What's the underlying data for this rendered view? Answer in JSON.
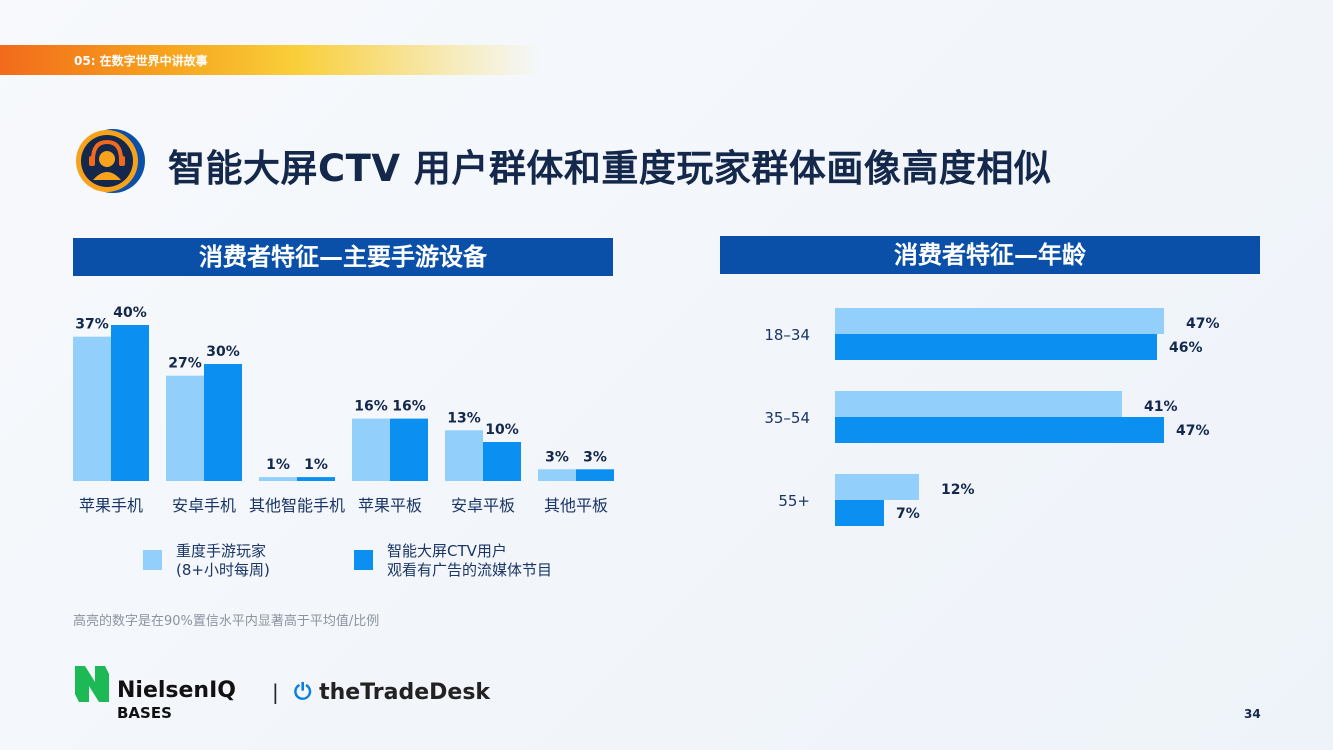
{
  "section_tag": "05: 在数字世界中讲故事",
  "page_title": "智能大屏CTV 用户群体和重度玩家群体画像高度相似",
  "footnote": "高亮的数字是在90%置信水平内显著高于平均值/比例",
  "page_number": "34",
  "logos": {
    "nielsen_line1": "NielsenIQ",
    "nielsen_line2": "BASES",
    "separator": "|",
    "tradedesk": "theTradeDesk"
  },
  "colors": {
    "light_series": "#92d0fb",
    "dark_series": "#0b8ff0",
    "header_bg": "#0a4fa8",
    "title_text": "#14284b",
    "accent_orange": "#f26a1b"
  },
  "legend": {
    "light_line1": "重度手游玩家",
    "light_line2": "(8+小时每周)",
    "dark_line1": "智能大屏CTV用户",
    "dark_line2": "观看有广告的流媒体节目"
  },
  "chart_data": [
    {
      "type": "bar",
      "title": "消费者特征—主要手游设备",
      "categories": [
        "苹果手机",
        "安卓手机",
        "其他智能手机",
        "苹果平板",
        "安卓平板",
        "其他平板"
      ],
      "series": [
        {
          "name": "重度手游玩家 (8+小时每周)",
          "values": [
            37,
            27,
            1,
            16,
            13,
            3
          ]
        },
        {
          "name": "智能大屏CTV用户 观看有广告的流媒体节目",
          "values": [
            40,
            30,
            1,
            16,
            10,
            3
          ]
        }
      ],
      "value_labels": [
        [
          "37%",
          "27%",
          "1%",
          "16%",
          "13%",
          "3%"
        ],
        [
          "40%",
          "30%",
          "1%",
          "16%",
          "10%",
          "3%"
        ]
      ],
      "unit": "%",
      "grid": false
    },
    {
      "type": "bar",
      "orientation": "horizontal",
      "title": "消费者特征—年龄",
      "categories": [
        "18–34",
        "35–54",
        "55+"
      ],
      "series": [
        {
          "name": "重度手游玩家 (8+小时每周)",
          "values": [
            47,
            41,
            12
          ]
        },
        {
          "name": "智能大屏CTV用户 观看有广告的流媒体节目",
          "values": [
            46,
            47,
            7
          ]
        }
      ],
      "value_labels": [
        [
          "47%",
          "41%",
          "12%"
        ],
        [
          "46%",
          "47%",
          "7%"
        ]
      ],
      "unit": "%",
      "grid": false
    }
  ]
}
